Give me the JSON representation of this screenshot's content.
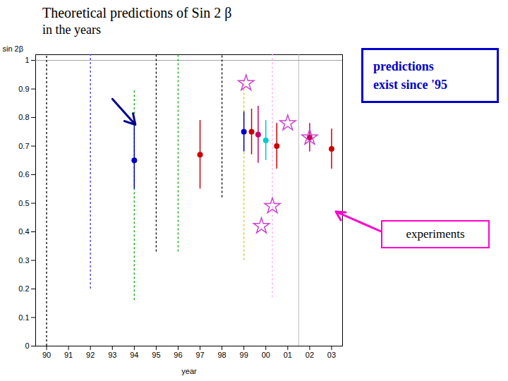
{
  "chart_data": {
    "type": "scatter",
    "title": "Theoretical predictions of Sin 2 β",
    "subtitle": "in the years",
    "x_label": "year",
    "y_label": "sin 2β",
    "xlim": [
      89.5,
      103.5
    ],
    "ylim": [
      0,
      1.02
    ],
    "xticks": [
      90,
      91,
      92,
      93,
      94,
      95,
      96,
      97,
      98,
      99,
      {
        "value": 100,
        "label": "00"
      },
      {
        "value": 101,
        "label": "01"
      },
      {
        "value": 102,
        "label": "02"
      },
      {
        "value": 103,
        "label": "03"
      }
    ],
    "yticks": [
      0,
      0.1,
      0.2,
      0.3,
      0.4,
      0.5,
      0.6,
      0.7,
      0.8,
      0.9,
      1
    ],
    "bands": [
      {
        "x": 90.0,
        "ymin": 0.0,
        "ymax": 1.02,
        "color": "#000000"
      },
      {
        "x": 92.0,
        "ymin": 0.2,
        "ymax": 1.02,
        "color": "#3333ff"
      },
      {
        "x": 94.0,
        "ymin": 0.16,
        "ymax": 0.9,
        "color": "#00aa00"
      },
      {
        "x": 95.0,
        "ymin": 0.33,
        "ymax": 1.02,
        "color": "#000000"
      },
      {
        "x": 96.0,
        "ymin": 0.33,
        "ymax": 1.02,
        "color": "#00aa00"
      },
      {
        "x": 98.0,
        "ymin": 0.52,
        "ymax": 1.02,
        "color": "#000000"
      },
      {
        "x": 99.0,
        "ymin": 0.3,
        "ymax": 0.93,
        "color": "#cccc00"
      },
      {
        "x": 100.3,
        "ymin": 0.17,
        "ymax": 1.02,
        "color": "#ffaaff"
      }
    ],
    "points": [
      {
        "x": 94.0,
        "y": 0.65,
        "yerr_lo": 0.1,
        "yerr_hi": 0.12,
        "color": "#0000cc"
      },
      {
        "x": 97.0,
        "y": 0.67,
        "yerr_lo": 0.12,
        "yerr_hi": 0.12,
        "color": "#cc0000"
      },
      {
        "x": 99.0,
        "y": 0.75,
        "yerr_lo": 0.07,
        "yerr_hi": 0.07,
        "color": "#0000cc"
      },
      {
        "x": 99.35,
        "y": 0.75,
        "yerr_lo": 0.08,
        "yerr_hi": 0.08,
        "color": "#cc0000"
      },
      {
        "x": 99.65,
        "y": 0.74,
        "yerr_lo": 0.1,
        "yerr_hi": 0.1,
        "color": "#cc0066"
      },
      {
        "x": 100.0,
        "y": 0.72,
        "yerr_lo": 0.07,
        "yerr_hi": 0.07,
        "color": "#00cccc"
      },
      {
        "x": 100.5,
        "y": 0.7,
        "yerr_lo": 0.08,
        "yerr_hi": 0.08,
        "color": "#cc0000"
      },
      {
        "x": 102.0,
        "y": 0.73,
        "yerr_lo": 0.05,
        "yerr_hi": 0.05,
        "color": "#cc0066"
      },
      {
        "x": 103.0,
        "y": 0.69,
        "yerr_lo": 0.07,
        "yerr_hi": 0.07,
        "color": "#cc0000"
      }
    ],
    "stars": {
      "color": "#cc44cc",
      "marker": "star",
      "points": [
        {
          "x": 99.1,
          "y": 0.92
        },
        {
          "x": 99.8,
          "y": 0.42
        },
        {
          "x": 100.3,
          "y": 0.49
        },
        {
          "x": 101.0,
          "y": 0.78
        },
        {
          "x": 102.0,
          "y": 0.73
        }
      ]
    },
    "reference_lines": [
      {
        "axis": "y",
        "value": 1.0,
        "color": "#888888"
      },
      {
        "axis": "x",
        "value": 101.5,
        "color": "#aaaaaa"
      }
    ],
    "arrows": [
      {
        "x1": 93.0,
        "y1": 0.865,
        "x2": 94.05,
        "y2": 0.775,
        "color": "#00008b"
      }
    ],
    "annotations": [
      {
        "text": "predictions",
        "color": "#0000cc"
      },
      {
        "text": "exist since '95",
        "color": "#0000cc"
      },
      {
        "text": "experiments",
        "color": "#ff00cc"
      }
    ]
  }
}
